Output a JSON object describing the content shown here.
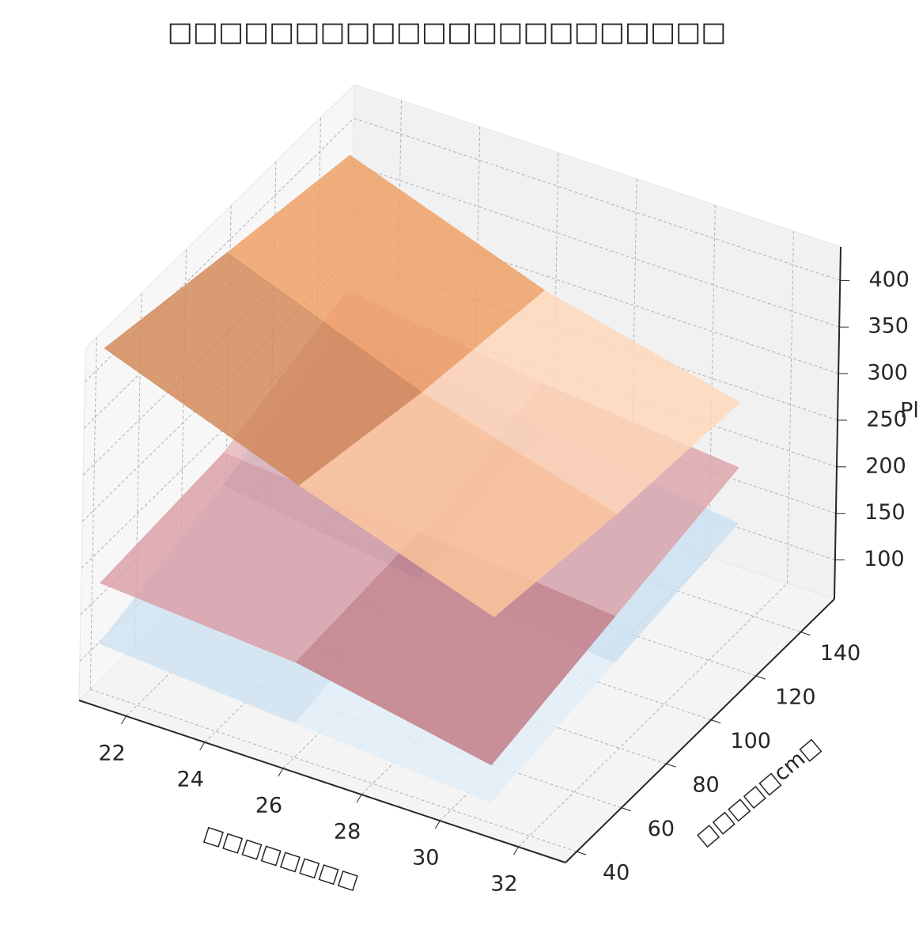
{
  "chart_data": {
    "type": "surface3d",
    "title": "□□□□□□□□□□□□□□□□□□□□□□",
    "xlabel": "□□□□□□□□",
    "ylabel": "□□□□□cm□",
    "zlabel": "Pl",
    "x": [
      21,
      26,
      31
    ],
    "y": [
      40,
      95,
      150
    ],
    "xlim": [
      20.8,
      33.2
    ],
    "ylim": [
      35,
      155
    ],
    "zlim": [
      58,
      436
    ],
    "xticks": [
      22,
      24,
      26,
      28,
      30,
      32
    ],
    "yticks": [
      40,
      60,
      80,
      100,
      120,
      140
    ],
    "zticks": [
      100,
      150,
      200,
      250,
      300,
      350,
      400
    ],
    "grid": true,
    "series": [
      {
        "colors": [
          "#f3f8fd",
          "#b9d8ec",
          "#2d5590"
        ],
        "values": [
          [
            110,
            95,
            80
          ],
          [
            150,
            120,
            100
          ],
          [
            200,
            150,
            120
          ]
        ]
      },
      {
        "colors": [
          "#a54a56",
          "#dca2aa",
          "#f3d6d9"
        ],
        "values": [
          [
            175,
            160,
            120
          ],
          [
            185,
            170,
            150
          ],
          [
            230,
            200,
            180
          ]
        ]
      },
      {
        "colors": [
          "#fff4ea",
          "#fba866",
          "#94543a"
        ],
        "values": [
          [
            427,
            350,
            279
          ],
          [
            400,
            320,
            260
          ],
          [
            375,
            300,
            250
          ]
        ]
      }
    ]
  }
}
